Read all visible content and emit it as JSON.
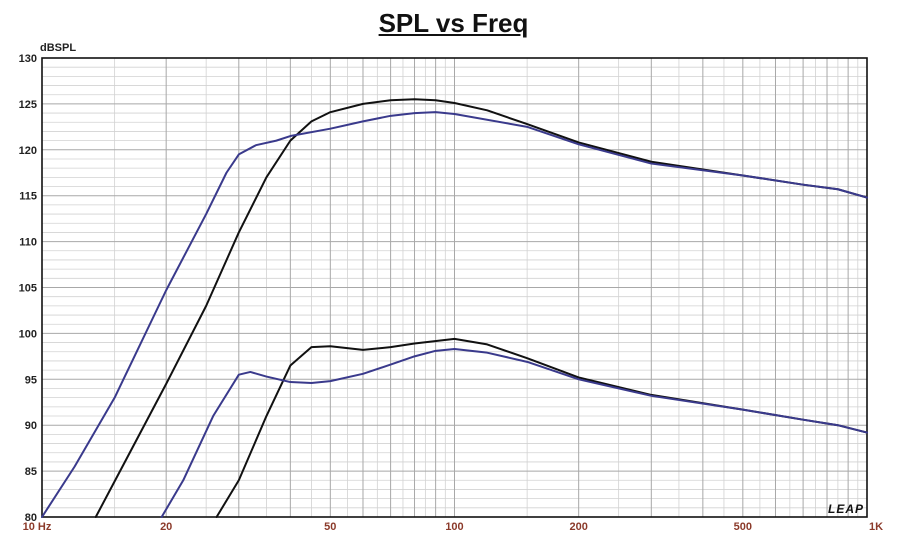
{
  "chart_data": {
    "type": "line",
    "title": "SPL vs Freq",
    "ylabel": "dBSPL",
    "xscale": "log",
    "xlim": [
      10,
      1000
    ],
    "ylim": [
      80,
      130
    ],
    "grid": true,
    "yticks": [
      80,
      85,
      90,
      95,
      100,
      105,
      110,
      115,
      120,
      125,
      130
    ],
    "xticks": [
      {
        "v": 10,
        "label": "10 Hz"
      },
      {
        "v": 20,
        "label": "20"
      },
      {
        "v": 50,
        "label": "50"
      },
      {
        "v": 100,
        "label": "100"
      },
      {
        "v": 200,
        "label": "200"
      },
      {
        "v": 500,
        "label": "500"
      },
      {
        "v": 1000,
        "label": "1K"
      }
    ],
    "watermark": "LEAP",
    "series": [
      {
        "color": "#111111",
        "points": [
          [
            13.5,
            80
          ],
          [
            20,
            94.5
          ],
          [
            25,
            103
          ],
          [
            30,
            111
          ],
          [
            35,
            117
          ],
          [
            40,
            121
          ],
          [
            45,
            123.1
          ],
          [
            50,
            124.1
          ],
          [
            60,
            125
          ],
          [
            70,
            125.4
          ],
          [
            80,
            125.5
          ],
          [
            90,
            125.4
          ],
          [
            100,
            125.1
          ],
          [
            120,
            124.3
          ],
          [
            150,
            122.8
          ],
          [
            200,
            120.8
          ],
          [
            300,
            118.7
          ],
          [
            500,
            117.2
          ],
          [
            700,
            116.2
          ],
          [
            850,
            115.7
          ],
          [
            1000,
            114.8
          ]
        ]
      },
      {
        "color": "#3a3a8c",
        "points": [
          [
            10,
            80
          ],
          [
            12,
            85.5
          ],
          [
            15,
            93
          ],
          [
            20,
            104.7
          ],
          [
            25,
            113
          ],
          [
            28,
            117.5
          ],
          [
            30,
            119.5
          ],
          [
            33,
            120.5
          ],
          [
            37,
            121
          ],
          [
            40,
            121.5
          ],
          [
            50,
            122.3
          ],
          [
            60,
            123.1
          ],
          [
            70,
            123.7
          ],
          [
            80,
            124
          ],
          [
            90,
            124.1
          ],
          [
            100,
            123.9
          ],
          [
            150,
            122.5
          ],
          [
            200,
            120.6
          ],
          [
            300,
            118.5
          ],
          [
            500,
            117.2
          ],
          [
            700,
            116.2
          ],
          [
            850,
            115.7
          ],
          [
            1000,
            114.8
          ]
        ]
      },
      {
        "color": "#111111",
        "points": [
          [
            26.5,
            80
          ],
          [
            30,
            84
          ],
          [
            35,
            91
          ],
          [
            40,
            96.5
          ],
          [
            45,
            98.5
          ],
          [
            50,
            98.6
          ],
          [
            60,
            98.2
          ],
          [
            70,
            98.5
          ],
          [
            80,
            98.9
          ],
          [
            100,
            99.4
          ],
          [
            120,
            98.8
          ],
          [
            150,
            97.3
          ],
          [
            200,
            95.2
          ],
          [
            300,
            93.3
          ],
          [
            500,
            91.7
          ],
          [
            700,
            90.6
          ],
          [
            850,
            90
          ],
          [
            1000,
            89.2
          ]
        ]
      },
      {
        "color": "#3a3a8c",
        "points": [
          [
            19.5,
            80
          ],
          [
            22,
            84
          ],
          [
            26,
            91
          ],
          [
            30,
            95.5
          ],
          [
            32,
            95.8
          ],
          [
            35,
            95.3
          ],
          [
            40,
            94.7
          ],
          [
            45,
            94.6
          ],
          [
            50,
            94.8
          ],
          [
            60,
            95.6
          ],
          [
            70,
            96.6
          ],
          [
            80,
            97.5
          ],
          [
            90,
            98.1
          ],
          [
            100,
            98.3
          ],
          [
            120,
            97.9
          ],
          [
            150,
            96.9
          ],
          [
            200,
            95
          ],
          [
            300,
            93.2
          ],
          [
            500,
            91.7
          ],
          [
            700,
            90.6
          ],
          [
            850,
            90
          ],
          [
            1000,
            89.2
          ]
        ]
      }
    ]
  }
}
